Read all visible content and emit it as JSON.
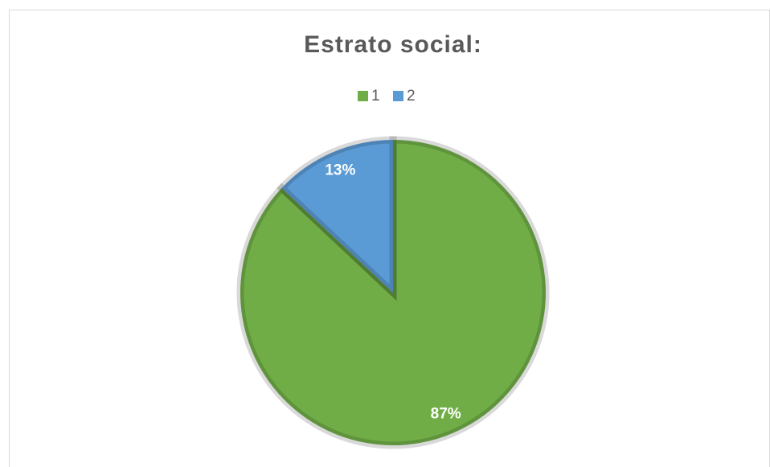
{
  "chart_data": {
    "type": "pie",
    "title": "Estrato social:",
    "categories": [
      "1",
      "2"
    ],
    "values": [
      87,
      13
    ],
    "value_labels": [
      "87%",
      "13%"
    ],
    "colors": [
      "#70ad47",
      "#5b9bd5"
    ],
    "legend": "top"
  }
}
